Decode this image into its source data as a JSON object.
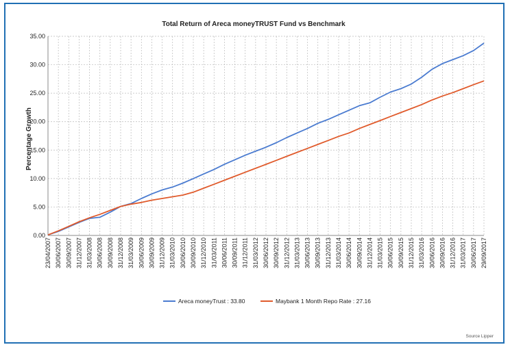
{
  "chart_data": {
    "type": "line",
    "title": "Total Return of  Areca moneyTRUST Fund vs Benchmark",
    "ylabel": "Percentage Growth",
    "xlabel": "",
    "ylim": [
      0,
      35
    ],
    "yticks": [
      "0.00",
      "5.00",
      "10.00",
      "15.00",
      "20.00",
      "25.00",
      "30.00",
      "35.00"
    ],
    "xticks": [
      "23/04/2007",
      "30/06/2007",
      "30/09/2007",
      "31/12/2007",
      "31/03/2008",
      "30/06/2008",
      "30/09/2008",
      "31/12/2008",
      "31/03/2009",
      "30/06/2009",
      "30/09/2009",
      "31/12/2009",
      "31/03/2010",
      "30/06/2010",
      "30/09/2010",
      "31/12/2010",
      "31/03/2011",
      "30/06/2011",
      "30/09/2011",
      "31/12/2011",
      "31/03/2012",
      "30/06/2012",
      "30/09/2012",
      "31/12/2012",
      "31/03/2013",
      "30/06/2013",
      "30/09/2013",
      "31/12/2013",
      "31/03/2014",
      "30/06/2014",
      "30/09/2014",
      "31/12/2014",
      "31/03/2015",
      "30/06/2015",
      "30/09/2015",
      "31/12/2015",
      "31/03/2016",
      "30/06/2016",
      "30/09/2016",
      "31/12/2016",
      "31/03/2017",
      "30/06/2017",
      "29/09/2017"
    ],
    "grid": true,
    "legend_position": "bottom",
    "series": [
      {
        "name": "Areca moneyTrust : 33.80",
        "color": "#4a7bd0",
        "x": [
          "23/04/2007",
          "30/06/2007",
          "30/09/2007",
          "31/12/2007",
          "31/03/2008",
          "30/06/2008",
          "30/09/2008",
          "31/12/2008",
          "31/03/2009",
          "30/06/2009",
          "30/09/2009",
          "31/12/2009",
          "31/03/2010",
          "30/06/2010",
          "30/09/2010",
          "31/12/2010",
          "31/03/2011",
          "30/06/2011",
          "30/09/2011",
          "31/12/2011",
          "31/03/2012",
          "30/06/2012",
          "30/09/2012",
          "31/12/2012",
          "31/03/2013",
          "30/06/2013",
          "30/09/2013",
          "31/12/2013",
          "31/03/2014",
          "30/06/2014",
          "30/09/2014",
          "31/12/2014",
          "31/03/2015",
          "30/06/2015",
          "30/09/2015",
          "31/12/2015",
          "31/03/2016",
          "30/06/2016",
          "30/09/2016",
          "31/12/2016",
          "31/03/2017",
          "30/06/2017",
          "29/09/2017"
        ],
        "values": [
          0.1,
          0.7,
          1.5,
          2.3,
          3.0,
          3.2,
          4.1,
          5.1,
          5.6,
          6.5,
          7.3,
          8.0,
          8.5,
          9.2,
          10.0,
          10.8,
          11.6,
          12.5,
          13.3,
          14.1,
          14.8,
          15.5,
          16.3,
          17.2,
          18.0,
          18.8,
          19.7,
          20.4,
          21.2,
          22.0,
          22.8,
          23.3,
          24.3,
          25.2,
          25.8,
          26.6,
          27.8,
          29.2,
          30.2,
          30.9,
          31.6,
          32.5,
          33.8
        ]
      },
      {
        "name": "Maybank 1 Month Repo Rate : 27.16",
        "color": "#e05a2b",
        "x": [
          "23/04/2007",
          "30/06/2007",
          "30/09/2007",
          "31/12/2007",
          "31/03/2008",
          "30/06/2008",
          "30/09/2008",
          "31/12/2008",
          "31/03/2009",
          "30/06/2009",
          "30/09/2009",
          "31/12/2009",
          "31/03/2010",
          "30/06/2010",
          "30/09/2010",
          "31/12/2010",
          "31/03/2011",
          "30/06/2011",
          "30/09/2011",
          "31/12/2011",
          "31/03/2012",
          "30/06/2012",
          "30/09/2012",
          "31/12/2012",
          "31/03/2013",
          "30/06/2013",
          "30/09/2013",
          "31/12/2013",
          "31/03/2014",
          "30/06/2014",
          "30/09/2014",
          "31/12/2014",
          "31/03/2015",
          "30/06/2015",
          "30/09/2015",
          "31/12/2015",
          "31/03/2016",
          "30/06/2016",
          "30/09/2016",
          "31/12/2016",
          "31/03/2017",
          "30/06/2017",
          "29/09/2017"
        ],
        "values": [
          0.1,
          0.8,
          1.6,
          2.4,
          3.1,
          3.7,
          4.4,
          5.1,
          5.5,
          5.8,
          6.2,
          6.5,
          6.8,
          7.1,
          7.6,
          8.3,
          9.0,
          9.7,
          10.4,
          11.1,
          11.8,
          12.5,
          13.2,
          13.9,
          14.6,
          15.3,
          16.0,
          16.7,
          17.4,
          18.0,
          18.8,
          19.5,
          20.2,
          20.9,
          21.6,
          22.3,
          23.0,
          23.8,
          24.5,
          25.1,
          25.8,
          26.5,
          27.16
        ]
      }
    ],
    "source": "Source Lipper"
  }
}
